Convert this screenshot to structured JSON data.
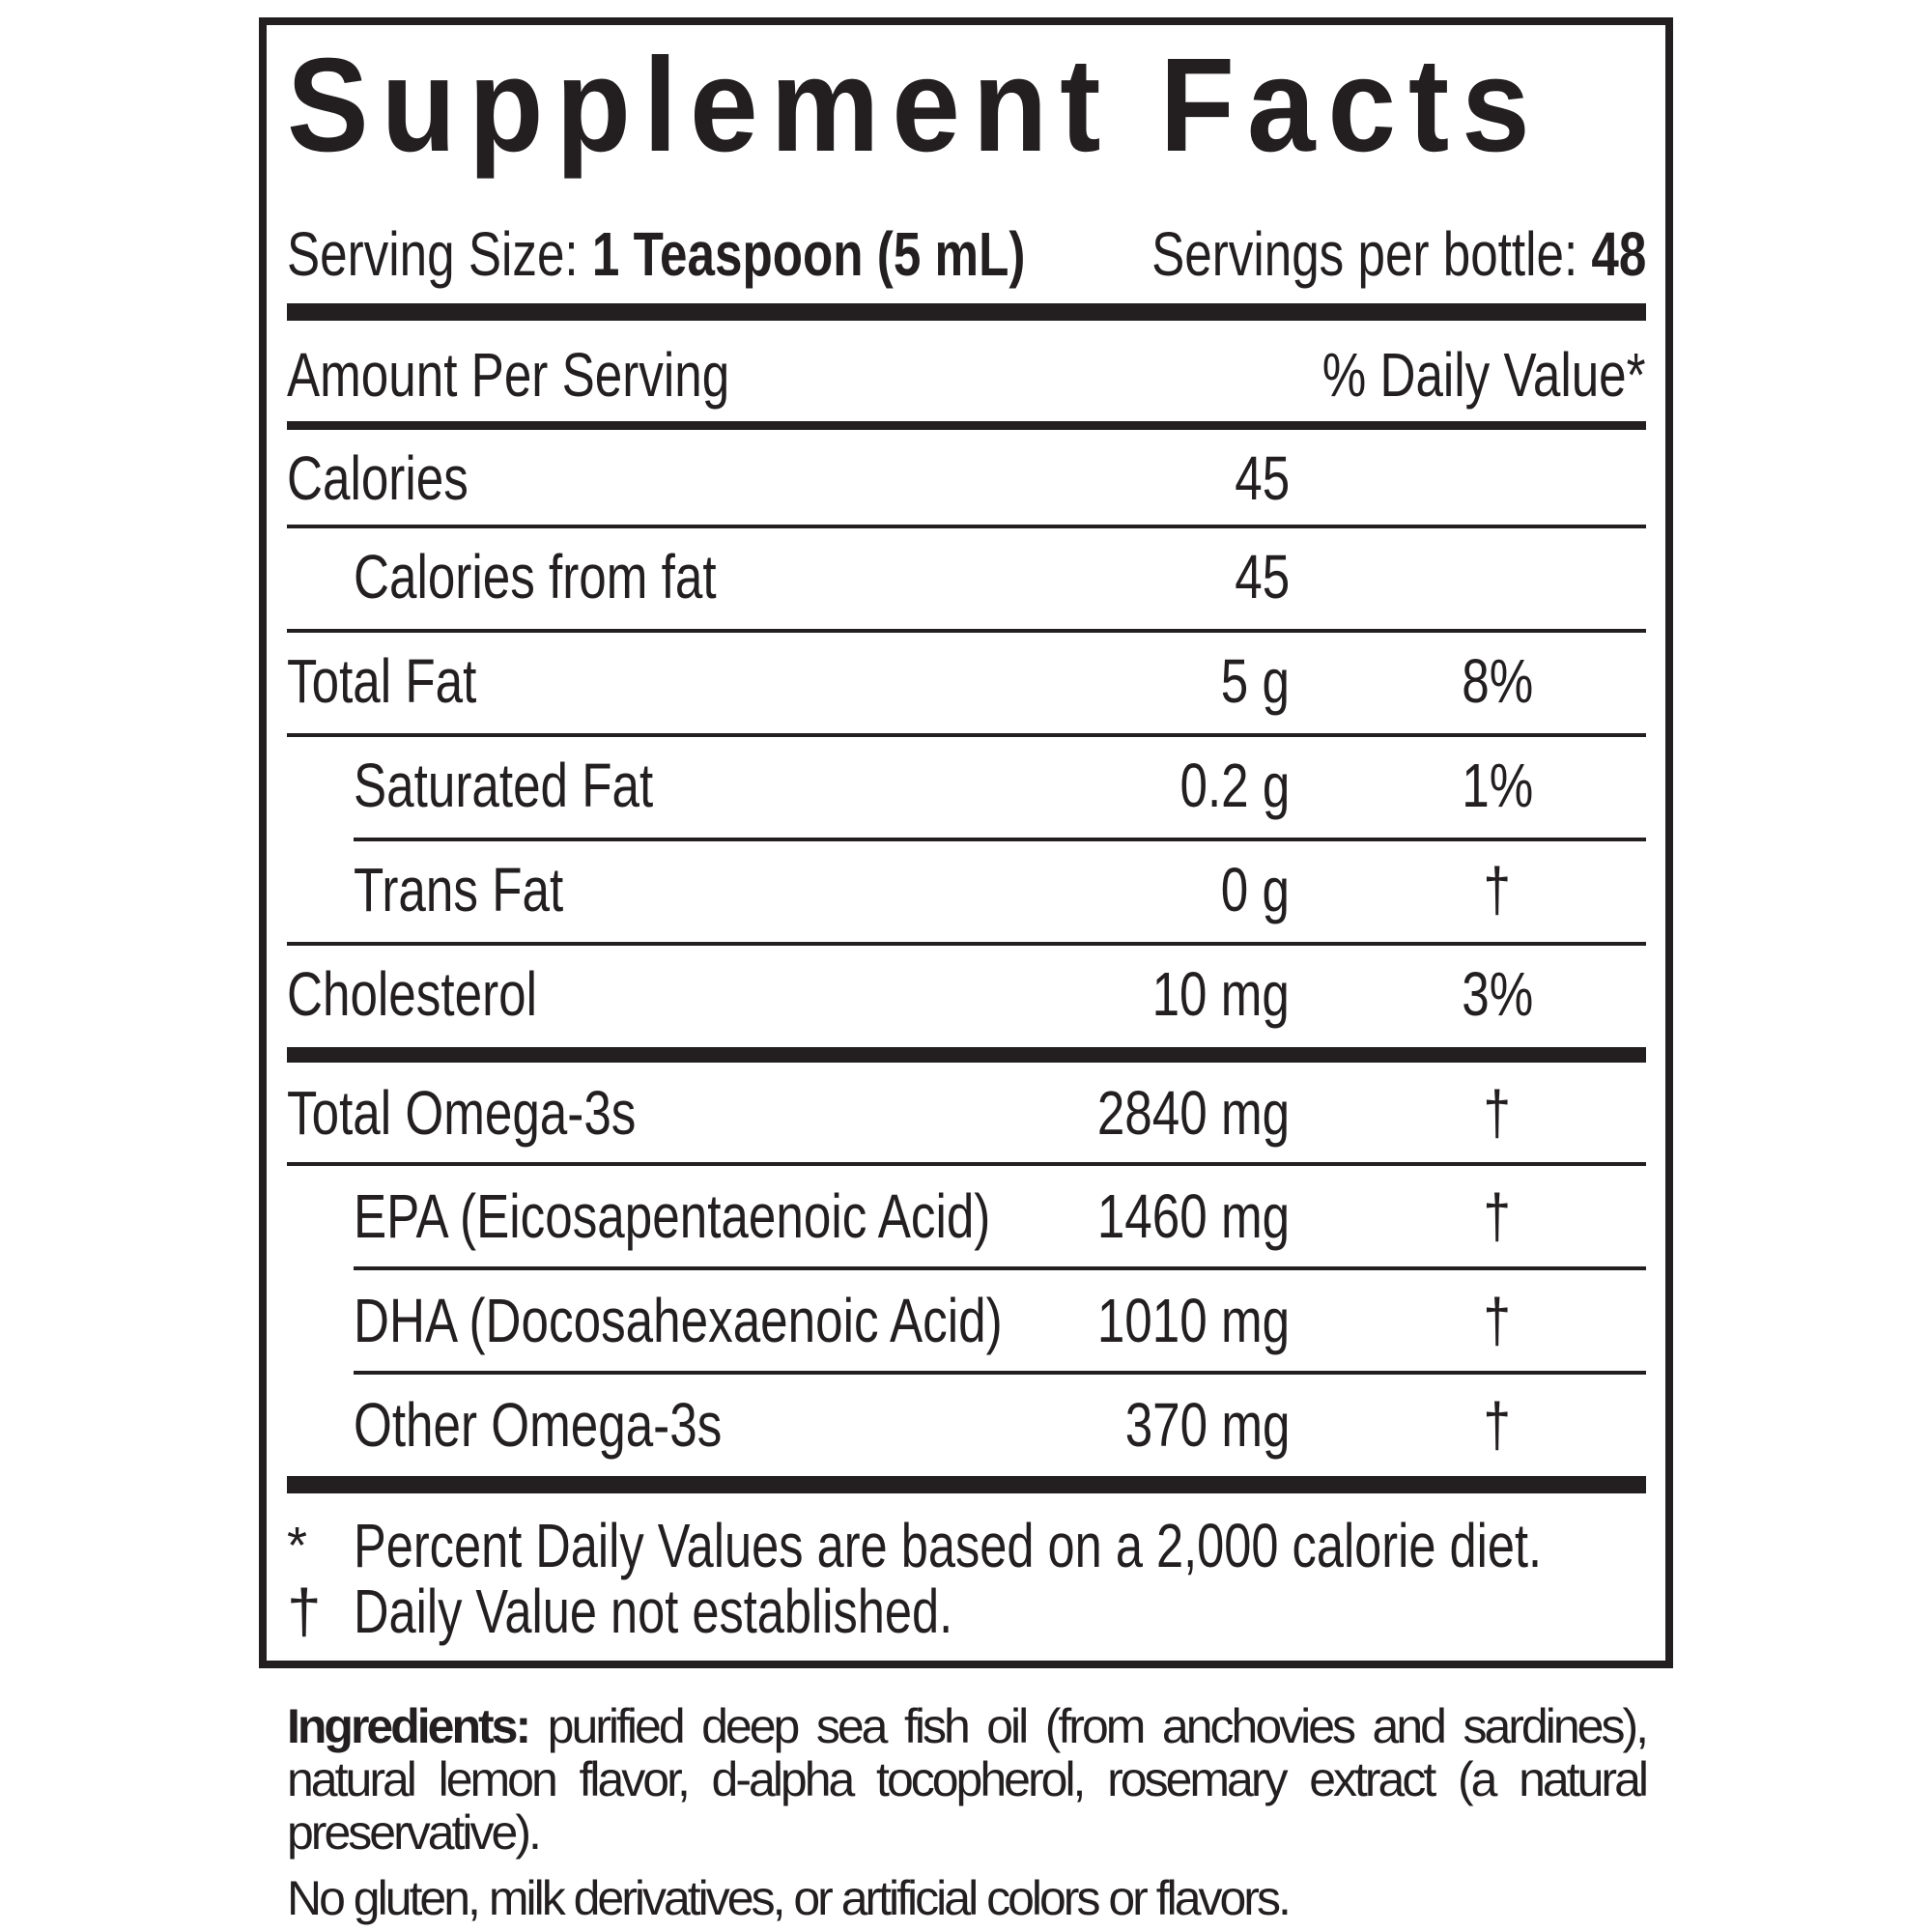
{
  "title": "Supplement Facts",
  "serving": {
    "size_label": "Serving Size:",
    "size_value": "1 Teaspoon (5 mL)",
    "per_container_label": "Servings per bottle:",
    "per_container_value": "48"
  },
  "header": {
    "amount_label": "Amount Per Serving",
    "dv_label": "% Daily Value*"
  },
  "rows": [
    {
      "label": "Calories",
      "amount": "45",
      "dv": ""
    },
    {
      "label": "Calories from fat",
      "amount": "45",
      "dv": ""
    },
    {
      "label": "Total Fat",
      "amount": "5 g",
      "dv": "8%"
    },
    {
      "label": "Saturated Fat",
      "amount": "0.2 g",
      "dv": "1%"
    },
    {
      "label": "Trans Fat",
      "amount": "0 g",
      "dv": "†"
    },
    {
      "label": "Cholesterol",
      "amount": "10 mg",
      "dv": "3%"
    },
    {
      "label": "Total Omega-3s",
      "amount": "2840 mg",
      "dv": "†"
    },
    {
      "label": "EPA (Eicosapentaenoic Acid)",
      "amount": "1460 mg",
      "dv": "†"
    },
    {
      "label": "DHA (Docosahexaenoic Acid)",
      "amount": "1010 mg",
      "dv": "†"
    },
    {
      "label": "Other Omega-3s",
      "amount": "370 mg",
      "dv": "†"
    }
  ],
  "footnotes": [
    {
      "symbol": "*",
      "text": "Percent Daily Values are based on a 2,000 calorie diet."
    },
    {
      "symbol": "†",
      "text": "Daily Value not established."
    }
  ],
  "ingredients": {
    "label": "Ingredients:",
    "text": "purified deep sea fish oil (from anchovies and sardines), natural lemon flavor, d-alpha tocopherol, rosemary extract (a natural preservative)."
  },
  "free_from": "No gluten, milk derivatives, or artificial colors or flavors."
}
